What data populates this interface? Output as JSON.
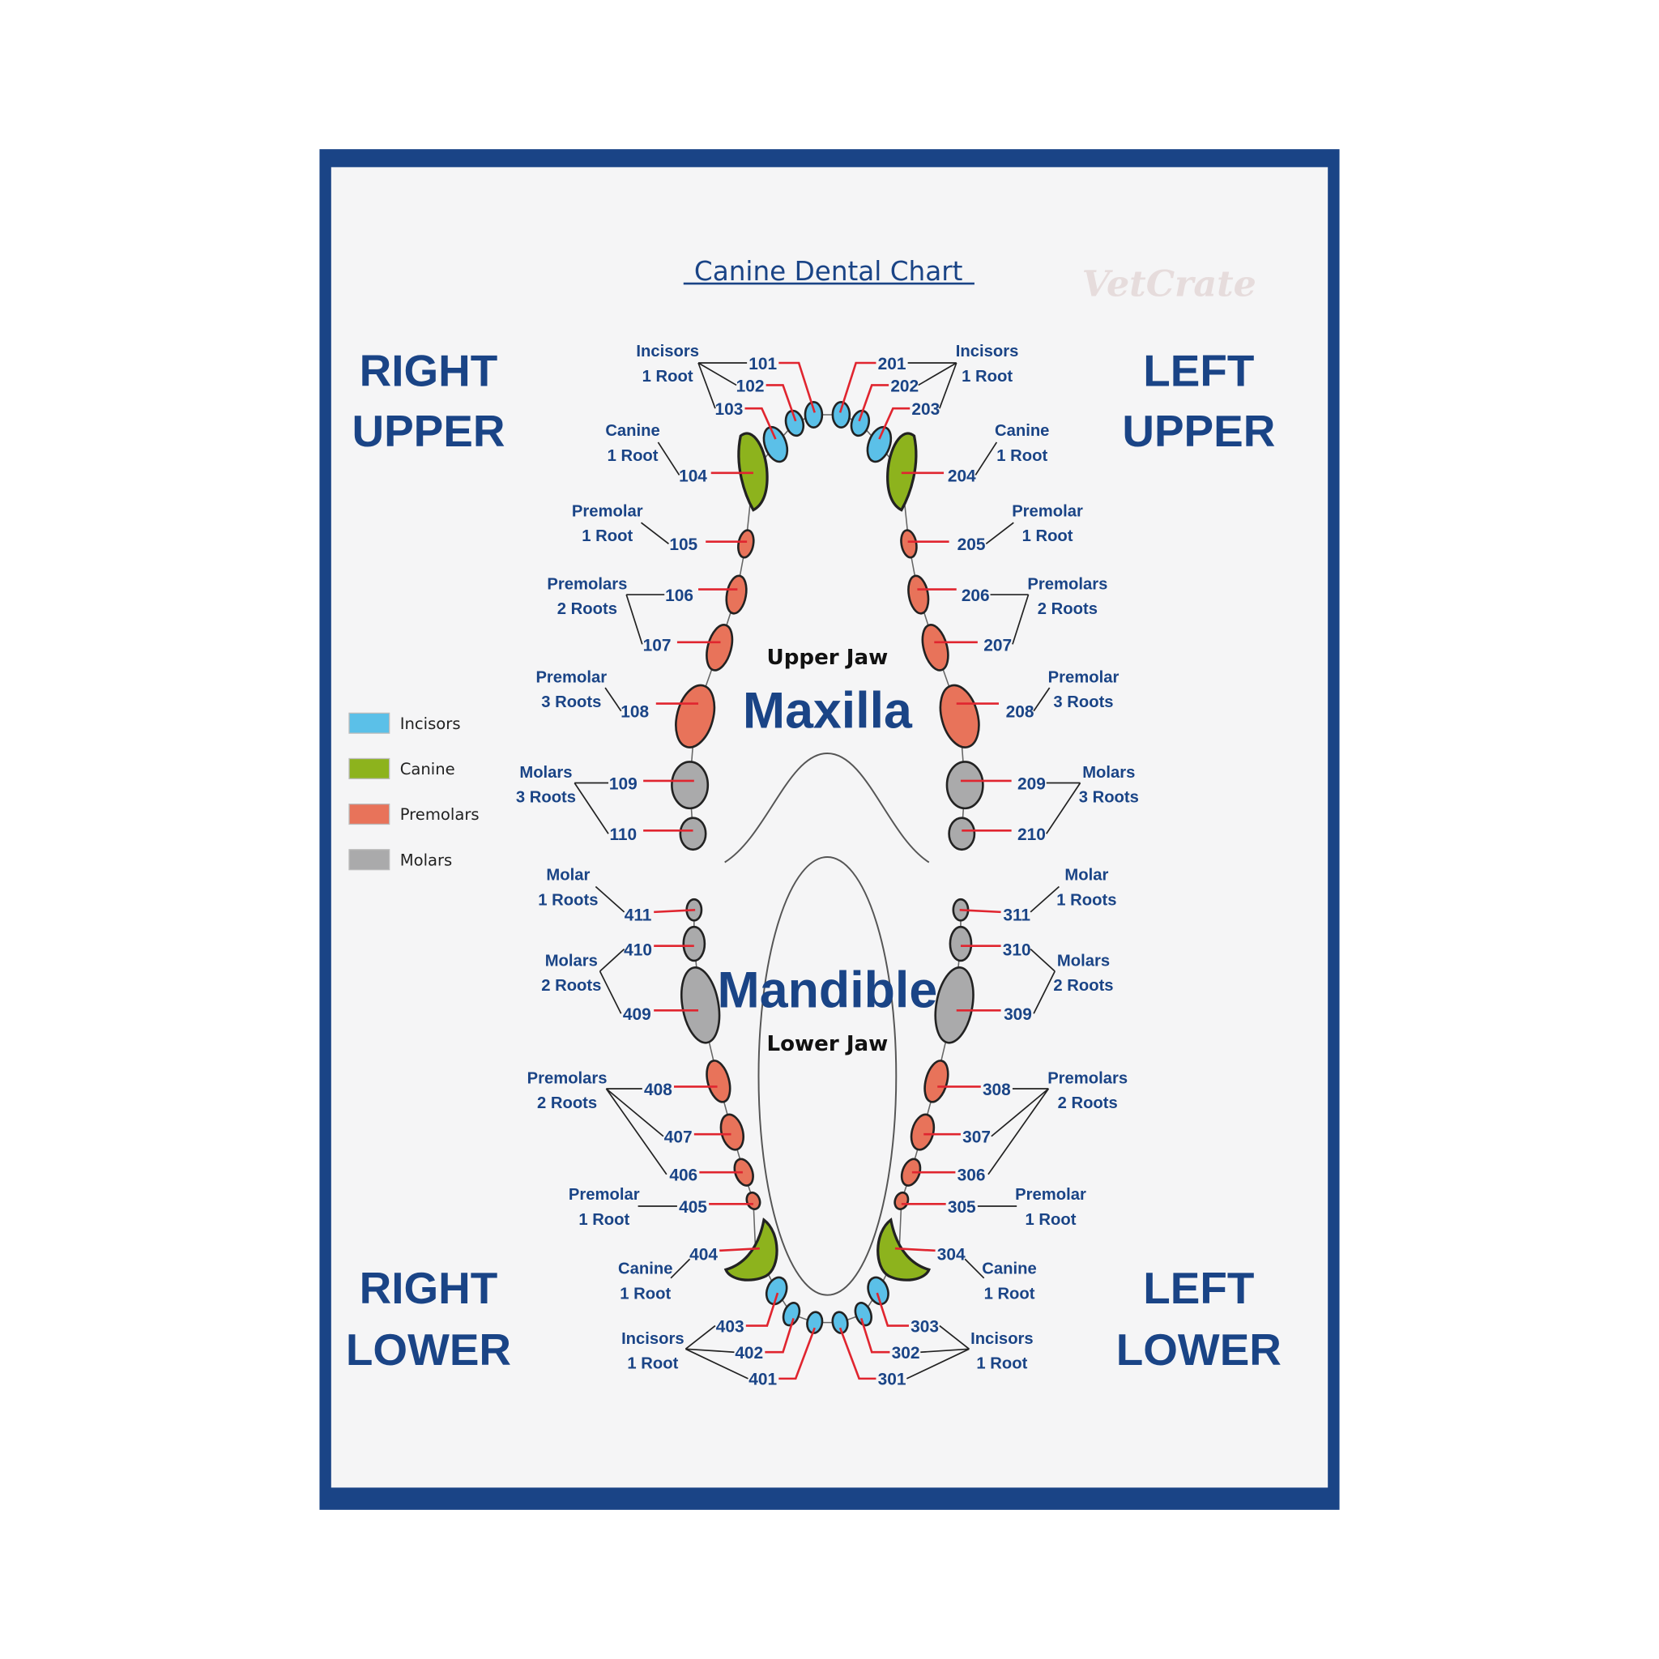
{
  "title": "Canine Dental Chart",
  "watermark": "VetCrate",
  "quadrants": {
    "right_upper": [
      "RIGHT",
      "UPPER"
    ],
    "left_upper": [
      "LEFT",
      "UPPER"
    ],
    "right_lower": [
      "RIGHT",
      "LOWER"
    ],
    "left_lower": [
      "LEFT",
      "LOWER"
    ]
  },
  "center": {
    "upper_jaw": "Upper Jaw",
    "maxilla": "Maxilla",
    "mandible": "Mandible",
    "lower_jaw": "Lower Jaw"
  },
  "colors": {
    "frame": "#1a4486",
    "incisor": "#5bc0e8",
    "canine": "#8db31d",
    "premolar": "#e8735a",
    "molar": "#aaaaab",
    "pointer": "#e0252f"
  },
  "legend": [
    {
      "label": "Incisors",
      "type": "incisor"
    },
    {
      "label": "Canine",
      "type": "canine"
    },
    {
      "label": "Premolars",
      "type": "premolar"
    },
    {
      "label": "Molars",
      "type": "molar"
    }
  ],
  "teeth": [
    {
      "id": "101",
      "type": "incisor"
    },
    {
      "id": "102",
      "type": "incisor"
    },
    {
      "id": "103",
      "type": "incisor"
    },
    {
      "id": "104",
      "type": "canine"
    },
    {
      "id": "105",
      "type": "premolar"
    },
    {
      "id": "106",
      "type": "premolar"
    },
    {
      "id": "107",
      "type": "premolar"
    },
    {
      "id": "108",
      "type": "premolar"
    },
    {
      "id": "109",
      "type": "molar"
    },
    {
      "id": "110",
      "type": "molar"
    },
    {
      "id": "201",
      "type": "incisor"
    },
    {
      "id": "202",
      "type": "incisor"
    },
    {
      "id": "203",
      "type": "incisor"
    },
    {
      "id": "204",
      "type": "canine"
    },
    {
      "id": "205",
      "type": "premolar"
    },
    {
      "id": "206",
      "type": "premolar"
    },
    {
      "id": "207",
      "type": "premolar"
    },
    {
      "id": "208",
      "type": "premolar"
    },
    {
      "id": "209",
      "type": "molar"
    },
    {
      "id": "210",
      "type": "molar"
    },
    {
      "id": "301",
      "type": "incisor"
    },
    {
      "id": "302",
      "type": "incisor"
    },
    {
      "id": "303",
      "type": "incisor"
    },
    {
      "id": "304",
      "type": "canine"
    },
    {
      "id": "305",
      "type": "premolar"
    },
    {
      "id": "306",
      "type": "premolar"
    },
    {
      "id": "307",
      "type": "premolar"
    },
    {
      "id": "308",
      "type": "premolar"
    },
    {
      "id": "309",
      "type": "molar"
    },
    {
      "id": "310",
      "type": "molar"
    },
    {
      "id": "311",
      "type": "molar"
    },
    {
      "id": "401",
      "type": "incisor"
    },
    {
      "id": "402",
      "type": "incisor"
    },
    {
      "id": "403",
      "type": "incisor"
    },
    {
      "id": "404",
      "type": "canine"
    },
    {
      "id": "405",
      "type": "premolar"
    },
    {
      "id": "406",
      "type": "premolar"
    },
    {
      "id": "407",
      "type": "premolar"
    },
    {
      "id": "408",
      "type": "premolar"
    },
    {
      "id": "409",
      "type": "molar"
    },
    {
      "id": "410",
      "type": "molar"
    },
    {
      "id": "411",
      "type": "molar"
    }
  ],
  "groups": [
    {
      "quadrant": "right_upper",
      "lines": [
        "Incisors",
        "1 Root"
      ],
      "teeth": [
        "101",
        "102",
        "103"
      ]
    },
    {
      "quadrant": "right_upper",
      "lines": [
        "Canine",
        "1 Root"
      ],
      "teeth": [
        "104"
      ]
    },
    {
      "quadrant": "right_upper",
      "lines": [
        "Premolar",
        "1 Root"
      ],
      "teeth": [
        "105"
      ]
    },
    {
      "quadrant": "right_upper",
      "lines": [
        "Premolars",
        "2 Roots"
      ],
      "teeth": [
        "106",
        "107"
      ]
    },
    {
      "quadrant": "right_upper",
      "lines": [
        "Premolar",
        "3 Roots"
      ],
      "teeth": [
        "108"
      ]
    },
    {
      "quadrant": "right_upper",
      "lines": [
        "Molars",
        "3 Roots"
      ],
      "teeth": [
        "109",
        "110"
      ]
    },
    {
      "quadrant": "left_upper",
      "lines": [
        "Incisors",
        "1 Root"
      ],
      "teeth": [
        "201",
        "202",
        "203"
      ]
    },
    {
      "quadrant": "left_upper",
      "lines": [
        "Canine",
        "1 Root"
      ],
      "teeth": [
        "204"
      ]
    },
    {
      "quadrant": "left_upper",
      "lines": [
        "Premolar",
        "1 Root"
      ],
      "teeth": [
        "205"
      ]
    },
    {
      "quadrant": "left_upper",
      "lines": [
        "Premolars",
        "2 Roots"
      ],
      "teeth": [
        "206",
        "207"
      ]
    },
    {
      "quadrant": "left_upper",
      "lines": [
        "Premolar",
        "3 Roots"
      ],
      "teeth": [
        "208"
      ]
    },
    {
      "quadrant": "left_upper",
      "lines": [
        "Molars",
        "3 Roots"
      ],
      "teeth": [
        "209",
        "210"
      ]
    },
    {
      "quadrant": "right_lower",
      "lines": [
        "Molar",
        "1 Roots"
      ],
      "teeth": [
        "411"
      ]
    },
    {
      "quadrant": "right_lower",
      "lines": [
        "Molars",
        "2 Roots"
      ],
      "teeth": [
        "410",
        "409"
      ]
    },
    {
      "quadrant": "right_lower",
      "lines": [
        "Premolars",
        "2 Roots"
      ],
      "teeth": [
        "408",
        "407",
        "406"
      ]
    },
    {
      "quadrant": "right_lower",
      "lines": [
        "Premolar",
        "1 Root"
      ],
      "teeth": [
        "405"
      ]
    },
    {
      "quadrant": "right_lower",
      "lines": [
        "Canine",
        "1 Root"
      ],
      "teeth": [
        "404"
      ]
    },
    {
      "quadrant": "right_lower",
      "lines": [
        "Incisors",
        "1 Root"
      ],
      "teeth": [
        "403",
        "402",
        "401"
      ]
    },
    {
      "quadrant": "left_lower",
      "lines": [
        "Molar",
        "1 Roots"
      ],
      "teeth": [
        "311"
      ]
    },
    {
      "quadrant": "left_lower",
      "lines": [
        "Molars",
        "2 Roots"
      ],
      "teeth": [
        "310",
        "309"
      ]
    },
    {
      "quadrant": "left_lower",
      "lines": [
        "Premolars",
        "2 Roots"
      ],
      "teeth": [
        "308",
        "307",
        "306"
      ]
    },
    {
      "quadrant": "left_lower",
      "lines": [
        "Premolar",
        "1 Root"
      ],
      "teeth": [
        "305"
      ]
    },
    {
      "quadrant": "left_lower",
      "lines": [
        "Canine",
        "1 Root"
      ],
      "teeth": [
        "304"
      ]
    },
    {
      "quadrant": "left_lower",
      "lines": [
        "Incisors",
        "1 Root"
      ],
      "teeth": [
        "303",
        "302",
        "301"
      ]
    }
  ]
}
